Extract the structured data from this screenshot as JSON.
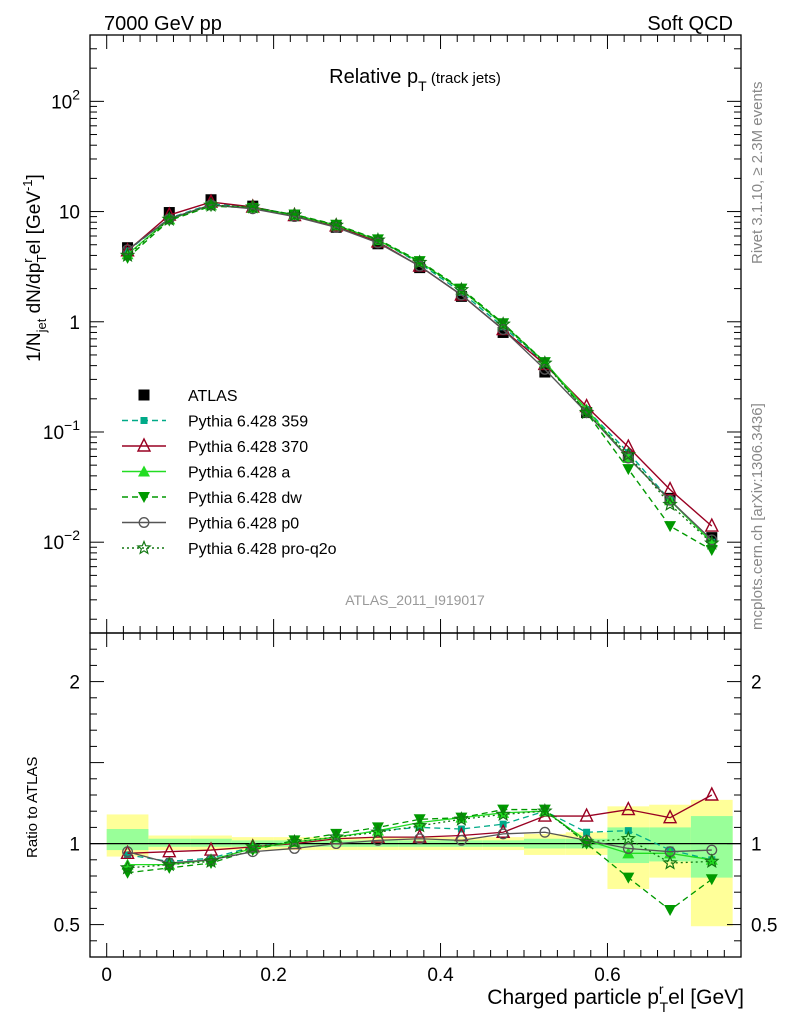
{
  "header": {
    "left": "7000 GeV pp",
    "right": "Soft QCD"
  },
  "side_labels": {
    "top": "Rivet 3.1.10, ≥ 2.3M events",
    "bottom": "mcplots.cern.ch [arXiv:1306.3436]"
  },
  "colors": {
    "atlas": "#000000",
    "p359": "#00aa88",
    "p370": "#990022",
    "a": "#22dd22",
    "dw": "#009900",
    "p0": "#555555",
    "proq2o": "#117711",
    "band_yellow": "#ffff99",
    "band_green": "#99ff99"
  },
  "chart_data": [
    {
      "type": "scatter",
      "panel": "main",
      "title": "Relative p_T (track jets)",
      "watermark": "ATLAS_2011_I919017",
      "ylabel": "1/N_jet dN/dp_T^rel [GeV^-1]",
      "y_scale": "log",
      "ylim": [
        0.0015,
        400
      ],
      "xlim": [
        -0.02,
        0.76
      ],
      "y_ticks": [
        {
          "value": 100,
          "base": "10",
          "exp": "2"
        },
        {
          "value": 10,
          "label": "10"
        },
        {
          "value": 1,
          "label": "1"
        },
        {
          "value": 0.1,
          "base": "10",
          "exp": "−1"
        },
        {
          "value": 0.01,
          "base": "10",
          "exp": "−2"
        }
      ],
      "x": [
        0.025,
        0.075,
        0.125,
        0.175,
        0.225,
        0.275,
        0.325,
        0.375,
        0.425,
        0.475,
        0.525,
        0.575,
        0.625,
        0.675,
        0.725
      ],
      "legend_position": "middle-left",
      "series": [
        {
          "name": "ATLAS",
          "key": "atlas",
          "marker": "square-filled",
          "line": "none",
          "values": [
            4.7,
            9.8,
            12.8,
            11.2,
            9.2,
            7.2,
            5.1,
            3.1,
            1.7,
            0.8,
            0.35,
            0.15,
            0.06,
            0.025,
            0.011
          ]
        },
        {
          "name": "Pythia 6.428 359",
          "key": "p359",
          "marker": "square-small",
          "line": "dashed",
          "values": [
            4.4,
            8.7,
            11.7,
            11.0,
            9.3,
            7.5,
            5.5,
            3.4,
            1.85,
            0.9,
            0.42,
            0.16,
            0.065,
            0.024,
            0.01
          ]
        },
        {
          "name": "Pythia 6.428 370",
          "key": "p370",
          "marker": "triangle-open",
          "line": "solid",
          "values": [
            4.4,
            9.3,
            12.2,
            11.0,
            9.2,
            7.4,
            5.3,
            3.2,
            1.75,
            0.85,
            0.41,
            0.17,
            0.073,
            0.03,
            0.014
          ]
        },
        {
          "name": "Pythia 6.428 a",
          "key": "a",
          "marker": "triangle-filled",
          "line": "solid",
          "values": [
            4.1,
            8.5,
            11.4,
            10.8,
            9.3,
            7.5,
            5.5,
            3.5,
            1.95,
            0.95,
            0.43,
            0.16,
            0.058,
            0.024,
            0.01
          ]
        },
        {
          "name": "Pythia 6.428 dw",
          "key": "dw",
          "marker": "triangle-down-filled",
          "line": "dashed",
          "values": [
            3.8,
            8.3,
            11.2,
            10.8,
            9.4,
            7.6,
            5.6,
            3.55,
            2.0,
            0.97,
            0.43,
            0.15,
            0.046,
            0.014,
            0.0085
          ]
        },
        {
          "name": "Pythia 6.428 p0",
          "key": "p0",
          "marker": "circle-open",
          "line": "solid",
          "values": [
            4.5,
            8.6,
            11.5,
            10.6,
            9.0,
            7.2,
            5.2,
            3.2,
            1.75,
            0.85,
            0.37,
            0.15,
            0.058,
            0.024,
            0.0105
          ]
        },
        {
          "name": "Pythia 6.428 pro-q2o",
          "key": "proq2o",
          "marker": "star-open",
          "line": "dotted",
          "values": [
            4.0,
            8.5,
            11.4,
            11.0,
            9.3,
            7.5,
            5.5,
            3.45,
            1.95,
            0.95,
            0.42,
            0.15,
            0.062,
            0.022,
            0.0098
          ]
        }
      ]
    },
    {
      "type": "scatter",
      "panel": "ratio",
      "ylabel": "Ratio to ATLAS",
      "xlabel": "Charged particle p_T^rel [GeV]",
      "ylim": [
        0.3,
        2.3
      ],
      "xlim": [
        -0.02,
        0.76
      ],
      "x_ticks": [
        "0",
        "0.2",
        "0.4",
        "0.6"
      ],
      "y_ticks": [
        "0.5",
        "1",
        "2"
      ],
      "x": [
        0.025,
        0.075,
        0.125,
        0.175,
        0.225,
        0.275,
        0.325,
        0.375,
        0.425,
        0.475,
        0.525,
        0.575,
        0.625,
        0.675,
        0.725
      ],
      "bands": {
        "yellow": [
          [
            0.92,
            1.18
          ],
          [
            0.96,
            1.05
          ],
          [
            0.96,
            1.05
          ],
          [
            0.96,
            1.04
          ],
          [
            0.96,
            1.04
          ],
          [
            0.96,
            1.04
          ],
          [
            0.96,
            1.04
          ],
          [
            0.96,
            1.04
          ],
          [
            0.96,
            1.04
          ],
          [
            0.96,
            1.04
          ],
          [
            0.93,
            1.06
          ],
          [
            0.93,
            1.07
          ],
          [
            0.72,
            1.23
          ],
          [
            0.79,
            1.24
          ],
          [
            0.49,
            1.27
          ]
        ],
        "green": [
          [
            0.96,
            1.09
          ],
          [
            0.98,
            1.03
          ],
          [
            0.98,
            1.03
          ],
          [
            0.98,
            1.02
          ],
          [
            0.98,
            1.02
          ],
          [
            0.98,
            1.02
          ],
          [
            0.98,
            1.02
          ],
          [
            0.98,
            1.02
          ],
          [
            0.98,
            1.02
          ],
          [
            0.98,
            1.02
          ],
          [
            0.97,
            1.03
          ],
          [
            0.97,
            1.03
          ],
          [
            0.88,
            1.1
          ],
          [
            0.89,
            1.1
          ],
          [
            0.79,
            1.17
          ]
        ]
      },
      "series": [
        {
          "name": "Pythia 6.428 359",
          "key": "p359",
          "marker": "square-small",
          "line": "dashed",
          "values": [
            0.93,
            0.89,
            0.91,
            0.98,
            1.01,
            1.04,
            1.08,
            1.1,
            1.09,
            1.12,
            1.2,
            1.07,
            1.08,
            0.96,
            0.9
          ]
        },
        {
          "name": "Pythia 6.428 370",
          "key": "p370",
          "marker": "triangle-open",
          "line": "solid",
          "values": [
            0.94,
            0.95,
            0.96,
            0.98,
            1.0,
            1.03,
            1.04,
            1.04,
            1.05,
            1.07,
            1.17,
            1.17,
            1.21,
            1.16,
            1.3
          ]
        },
        {
          "name": "Pythia 6.428 a",
          "key": "a",
          "marker": "triangle-filled",
          "line": "solid",
          "values": [
            0.87,
            0.87,
            0.9,
            0.97,
            1.01,
            1.04,
            1.08,
            1.13,
            1.16,
            1.19,
            1.2,
            1.02,
            0.94,
            0.94,
            0.9
          ]
        },
        {
          "name": "Pythia 6.428 dw",
          "key": "dw",
          "marker": "triangle-down-filled",
          "line": "dashed",
          "values": [
            0.82,
            0.85,
            0.88,
            0.96,
            1.02,
            1.06,
            1.1,
            1.15,
            1.16,
            1.21,
            1.21,
            1.0,
            0.79,
            0.59,
            0.78
          ]
        },
        {
          "name": "Pythia 6.428 p0",
          "key": "p0",
          "marker": "circle-open",
          "line": "solid",
          "values": [
            0.95,
            0.88,
            0.9,
            0.95,
            0.97,
            1.0,
            1.02,
            1.03,
            1.02,
            1.06,
            1.07,
            1.02,
            0.97,
            0.95,
            0.96
          ]
        },
        {
          "name": "Pythia 6.428 pro-q2o",
          "key": "proq2o",
          "marker": "star-open",
          "line": "dotted",
          "values": [
            0.85,
            0.87,
            0.89,
            0.98,
            1.01,
            1.04,
            1.07,
            1.11,
            1.15,
            1.18,
            1.2,
            1.01,
            1.03,
            0.88,
            0.89
          ]
        }
      ]
    }
  ]
}
